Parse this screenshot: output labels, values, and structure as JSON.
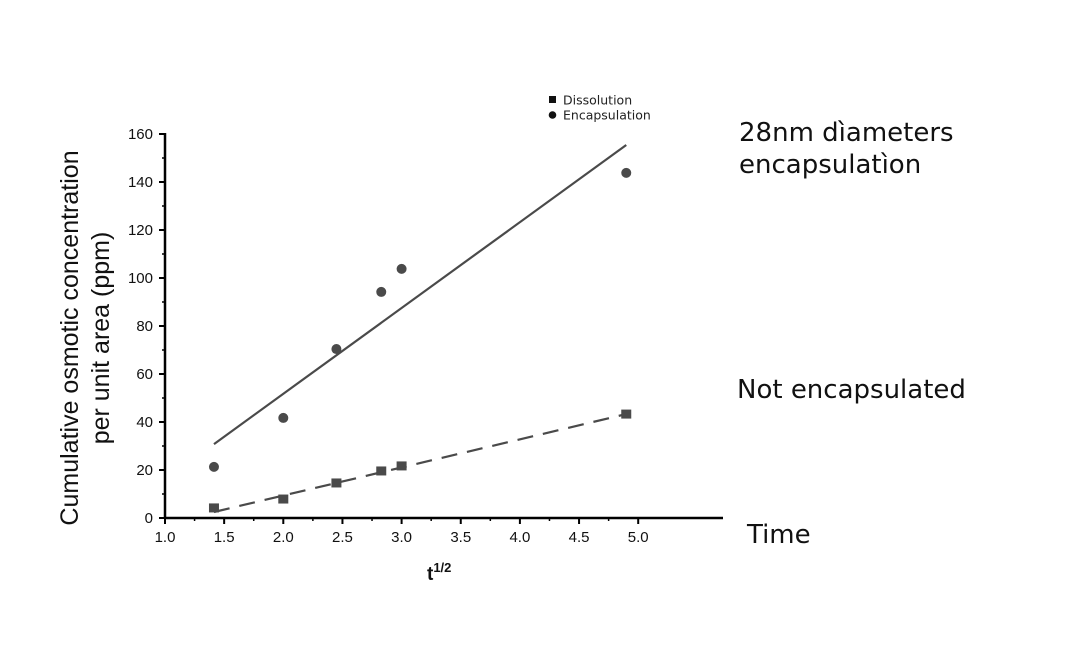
{
  "chart_data": {
    "type": "scatter",
    "title": "",
    "xlabel": "t",
    "xlabel_superscript": "1/2",
    "ylabel_line1": "Cumulative osmotic concentration",
    "ylabel_line2": "per unit area (ppm)",
    "xlim": [
      1.0,
      5.3
    ],
    "ylim": [
      0,
      160
    ],
    "xticks": [
      1.0,
      1.5,
      2.0,
      2.5,
      3.0,
      3.5,
      4.0,
      4.5,
      5.0
    ],
    "xtick_labels": [
      "1.0",
      "1.5",
      "2.0",
      "2.5",
      "3.0",
      "3.5",
      "4.0",
      "4.5",
      "5.0"
    ],
    "yticks": [
      0,
      20,
      40,
      60,
      80,
      100,
      120,
      140,
      160
    ],
    "ytick_labels": [
      "0",
      "20",
      "40",
      "60",
      "80",
      "100",
      "120",
      "140",
      "160"
    ],
    "grid": false,
    "legend_position": "top-right (above plot)",
    "series": [
      {
        "name": "Dissolution",
        "marker": "square",
        "color": "#4a4a4a",
        "x": [
          1.414,
          2.0,
          2.449,
          2.828,
          3.0,
          4.899
        ],
        "y": [
          4.2,
          7.9,
          14.6,
          19.6,
          21.7,
          43.3
        ],
        "fit_line": {
          "style": "dashed",
          "x": [
            1.414,
            4.899
          ],
          "y": [
            2.5,
            43.3
          ]
        }
      },
      {
        "name": "Encapsulation",
        "marker": "circle",
        "color": "#4a4a4a",
        "x": [
          1.414,
          2.0,
          2.449,
          2.828,
          3.0,
          4.899
        ],
        "y": [
          21.3,
          41.7,
          70.4,
          94.2,
          103.8,
          143.8
        ],
        "fit_line": {
          "style": "solid",
          "x": [
            1.414,
            4.899
          ],
          "y": [
            30.8,
            155.4
          ]
        }
      }
    ],
    "annotations": [
      {
        "text": "28nm dìameters\nencapsulatìon",
        "position": "right of upper fit line"
      },
      {
        "text": "Not encapsulated",
        "position": "right of lower fit line"
      },
      {
        "text": "Time",
        "position": "right of x-axis"
      }
    ]
  },
  "legend": {
    "items": [
      {
        "label": "Dissolution",
        "marker": "square"
      },
      {
        "label": "Encapsulation",
        "marker": "circle"
      }
    ]
  },
  "annotations": {
    "encapsulation_label": "28nm dìameters\nencapsulatìon",
    "not_encapsulated_label": "Not encapsulated",
    "time_label": "Time"
  }
}
